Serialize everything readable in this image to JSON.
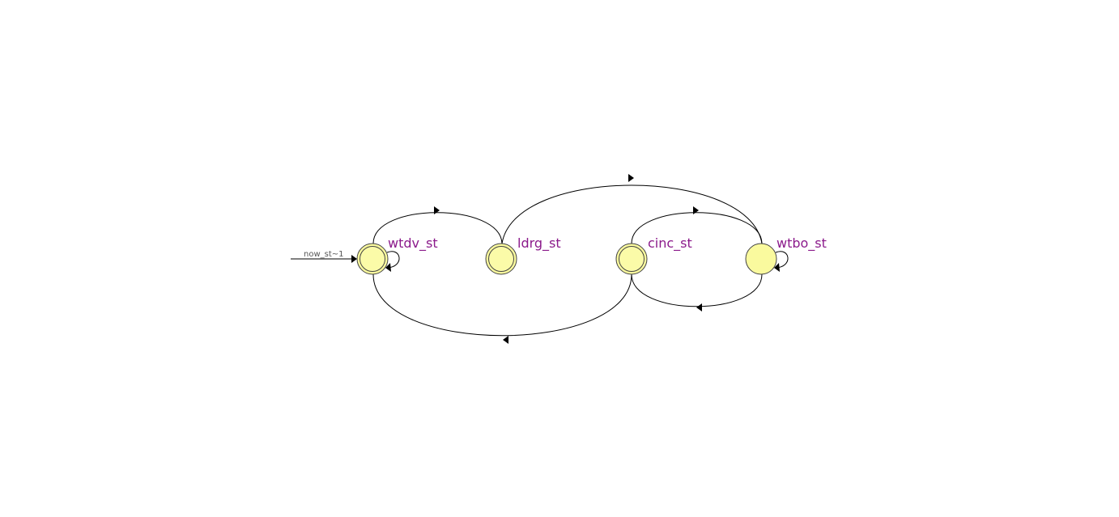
{
  "diagram": {
    "initial_transition_label": "now_st~1",
    "states": [
      {
        "id": "wtdv",
        "name": "wtdv_st",
        "accepting": true
      },
      {
        "id": "ldrg",
        "name": "ldrg_st",
        "accepting": true
      },
      {
        "id": "cinc",
        "name": "cinc_st",
        "accepting": true
      },
      {
        "id": "wtbo",
        "name": "wtbo_st",
        "accepting": false
      }
    ],
    "transitions": [
      {
        "from": "wtdv_st",
        "to": "wtdv_st"
      },
      {
        "from": "wtdv_st",
        "to": "ldrg_st"
      },
      {
        "from": "ldrg_st",
        "to": "wtbo_st"
      },
      {
        "from": "cinc_st",
        "to": "wtbo_st"
      },
      {
        "from": "wtbo_st",
        "to": "cinc_st"
      },
      {
        "from": "cinc_st",
        "to": "wtdv_st"
      },
      {
        "from": "wtbo_st",
        "to": "wtbo_st"
      }
    ],
    "colors": {
      "state_fill": "#fafa9e",
      "label_color": "#8b1a8b",
      "edge_color": "#000000"
    }
  }
}
